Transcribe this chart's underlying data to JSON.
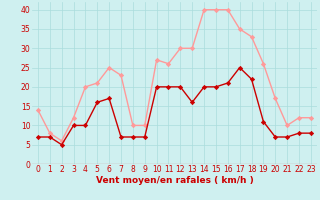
{
  "x": [
    0,
    1,
    2,
    3,
    4,
    5,
    6,
    7,
    8,
    9,
    10,
    11,
    12,
    13,
    14,
    15,
    16,
    17,
    18,
    19,
    20,
    21,
    22,
    23
  ],
  "vent_moyen": [
    7,
    7,
    5,
    10,
    10,
    16,
    17,
    7,
    7,
    7,
    20,
    20,
    20,
    16,
    20,
    20,
    21,
    25,
    22,
    11,
    7,
    7,
    8,
    8
  ],
  "rafales": [
    14,
    8,
    6,
    12,
    20,
    21,
    25,
    23,
    10,
    10,
    27,
    26,
    30,
    30,
    40,
    40,
    40,
    35,
    33,
    26,
    17,
    10,
    12,
    12
  ],
  "color_moyen": "#cc0000",
  "color_rafales": "#ff9999",
  "bg_color": "#cff0f0",
  "grid_color": "#aadddd",
  "xlabel": "Vent moyen/en rafales ( km/h )",
  "ylim": [
    0,
    42
  ],
  "yticks": [
    0,
    5,
    10,
    15,
    20,
    25,
    30,
    35,
    40
  ],
  "xticks": [
    0,
    1,
    2,
    3,
    4,
    5,
    6,
    7,
    8,
    9,
    10,
    11,
    12,
    13,
    14,
    15,
    16,
    17,
    18,
    19,
    20,
    21,
    22,
    23
  ],
  "marker": "D",
  "markersize": 2.2,
  "linewidth": 1.0
}
